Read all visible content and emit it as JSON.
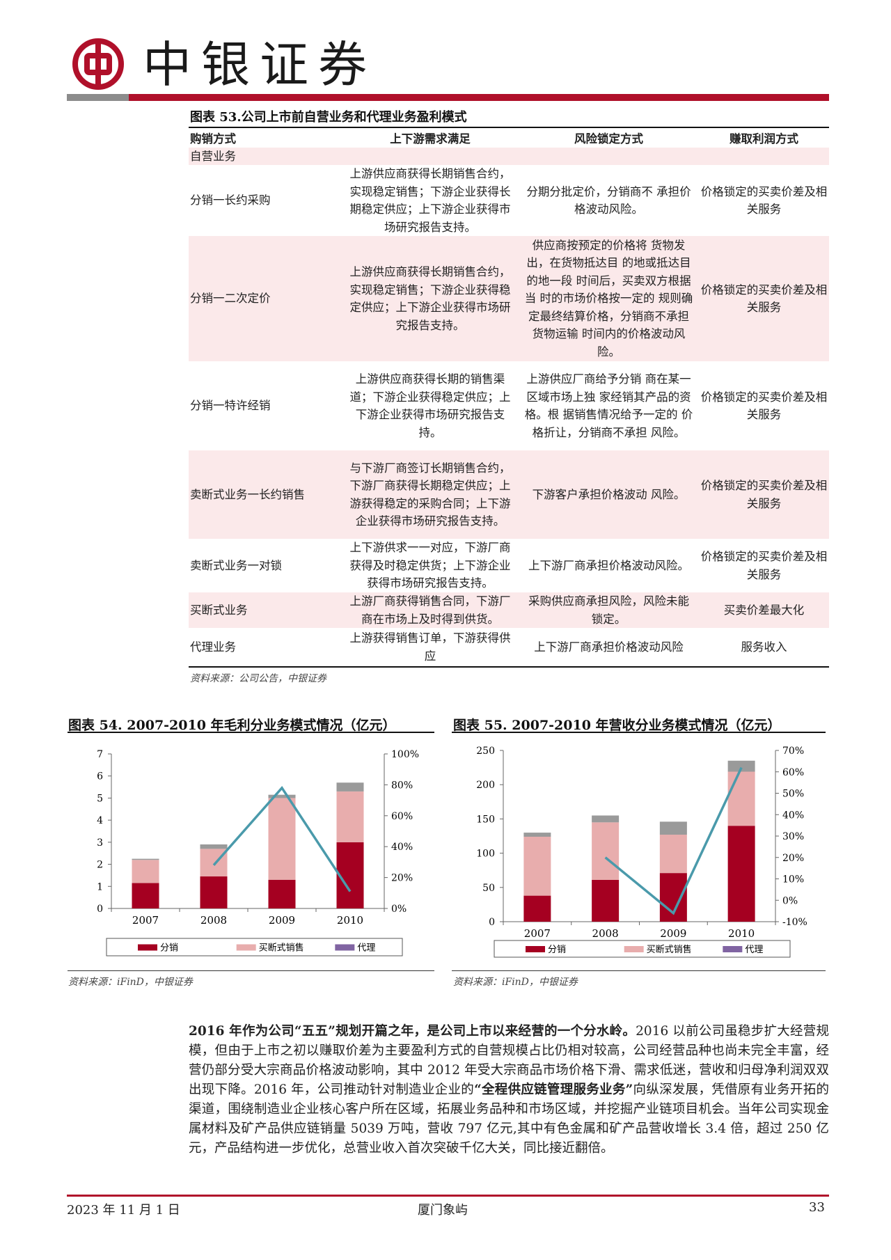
{
  "header": {
    "brand": "中银证券",
    "brand_color": "#b0102a"
  },
  "table53": {
    "title": "图表 53.公司上市前自营业务和代理业务盈利模式",
    "headers": [
      "购销方式",
      "上下游需求满足",
      "风险锁定方式",
      "赚取利润方式"
    ],
    "rows": [
      {
        "pink": true,
        "cells": [
          "自营业务",
          "",
          "",
          ""
        ]
      },
      {
        "pink": false,
        "cells": [
          "分销一长约采购",
          "上游供应商获得长期销售合约，实现稳定销售；下游企业获得长期稳定供应；上下游企业获得市场研究报告支持。",
          "分期分批定价，分销商不 承担价格波动风险。",
          "价格锁定的买卖价差及相关服务"
        ]
      },
      {
        "pink": true,
        "cells": [
          "分销一二次定价",
          "上游供应商获得长期销售合约，实现稳定销售；下游企业获得稳定供应；上下游企业获得市场研究报告支持。",
          "供应商按预定的价格将 货物发出，在货物抵达目 的地或抵达目的地一段 时间后，买卖双方根据当 时的市场价格按一定的 规则确定最终结算价格，分销商不承担货物运输 时间内的价格波动风险。",
          "价格锁定的买卖价差及相关服务"
        ]
      },
      {
        "pink": false,
        "cells": [
          "分销一特许经销",
          "上游供应商获得长期的销售渠道；下游企业获得稳定供应；上下游企业获得市场研究报告支持。",
          "上游供应厂商给予分销 商在某一区域市场上独 家经销其产品的资格。根 据销售情况给予一定的 价格折让，分销商不承担 风险。",
          "价格锁定的买卖价差及相关服务"
        ]
      },
      {
        "pink": true,
        "cells": [
          "卖断式业务一长约销售",
          "与下游厂商签订长期销售合约，下游厂商获得长期稳定供应；上游获得稳定的采购合同；上下游企业获得市场研究报告支持。",
          "下游客户承担价格波动 风险。",
          "价格锁定的买卖价差及相关服务"
        ]
      },
      {
        "pink": false,
        "cells": [
          "卖断式业务一对锁",
          "上下游供求一一对应，下游厂商获得及时稳定供货；上下游企业获得市场研究报告支持。",
          "上下游厂商承担价格波动风险。",
          "价格锁定的买卖价差及相关服务"
        ]
      },
      {
        "pink": true,
        "cells": [
          "买断式业务",
          "上游厂商获得销售合同，下游厂商在市场上及时得到供货。",
          "采购供应商承担风险，风险未能锁定。",
          "买卖价差最大化"
        ]
      },
      {
        "pink": false,
        "cells": [
          "代理业务",
          "上游获得销售订单，下游获得供应",
          "上下游厂商承担价格波动风险",
          "服务收入"
        ]
      }
    ],
    "source": "资料来源：公司公告，中银证券"
  },
  "chart_data": [
    {
      "type": "bar",
      "stacked": true,
      "title": "图表 54. 2007-2010 年毛利分业务模式情况（亿元）",
      "categories": [
        "2007",
        "2008",
        "2009",
        "2010"
      ],
      "series": [
        {
          "name": "分销",
          "values": [
            1.15,
            1.45,
            1.3,
            3.0
          ],
          "color": "#a50021"
        },
        {
          "name": "买断式销售",
          "values": [
            1.05,
            1.25,
            3.7,
            2.3
          ],
          "color": "#e8adad"
        },
        {
          "name": "代理",
          "values": [
            0.05,
            0.2,
            0.15,
            0.4
          ],
          "color": "#9a9a9a",
          "legend_color": "#8064a2"
        }
      ],
      "line": {
        "values": [
          null,
          0.28,
          0.78,
          0.11
        ],
        "color": "#4a9aab",
        "axis": "right"
      },
      "ylim": [
        0,
        7
      ],
      "yticks": [
        "0",
        "1",
        "2",
        "3",
        "4",
        "5",
        "6",
        "7"
      ],
      "y2lim": [
        0,
        1
      ],
      "y2ticks": [
        "0%",
        "20%",
        "40%",
        "60%",
        "80%",
        "100%"
      ],
      "legend": "bottom",
      "source": "资料来源：iFinD，中银证券"
    },
    {
      "type": "bar",
      "stacked": true,
      "title": "图表 55. 2007-2010 年营收分业务模式情况（亿元）",
      "categories": [
        "2007",
        "2008",
        "2009",
        "2010"
      ],
      "series": [
        {
          "name": "分销",
          "values": [
            38,
            61,
            71,
            140
          ],
          "color": "#a50021"
        },
        {
          "name": "买断式销售",
          "values": [
            86,
            84,
            56,
            79
          ],
          "color": "#e8adad"
        },
        {
          "name": "代理",
          "values": [
            6,
            10,
            19,
            16
          ],
          "color": "#9a9a9a",
          "legend_color": "#8064a2"
        }
      ],
      "line": {
        "values": [
          null,
          0.2,
          -0.06,
          0.62
        ],
        "color": "#4a9aab",
        "axis": "right"
      },
      "ylim": [
        0,
        250
      ],
      "yticks": [
        "0",
        "50",
        "100",
        "150",
        "200",
        "250"
      ],
      "y2lim": [
        -0.1,
        0.7
      ],
      "y2ticks": [
        "-10%",
        "0%",
        "10%",
        "20%",
        "30%",
        "40%",
        "50%",
        "60%",
        "70%"
      ],
      "legend": "bottom",
      "source": "资料来源：iFinD，中银证券"
    }
  ],
  "paragraph": [
    {
      "text": "2016 年作为公司“五五”规划开篇之年，是公司上市以来经营的一个分水岭。",
      "bold": true
    },
    {
      "text": "2016 以前公司虽稳步扩大经营规模，但由于上市之初以赚取价差为主要盈利方式的自营规模占比仍相对较高，公司经营品种也尚未完全丰富，经营仍部分受大宗商品价格波动影响，其中 2012 年受大宗商品市场价格下滑、需求低迷，营收和归母净利润双双出现下降。2016 年，公司推动针对制造业企业的",
      "bold": false
    },
    {
      "text": "“全程供应链管理服务业务”",
      "bold": true
    },
    {
      "text": "向纵深发展，凭借原有业务开拓的渠道，围绕制造业企业核心客户所在区域，拓展业务品种和市场区域，并挖掘产业链项目机会。当年公司实现金属材料及矿产品供应链销量 5039 万吨，营收 797 亿元,其中有色金属和矿产品营收增长 3.4 倍，超过 250 亿元，产品结构进一步优化，总营业收入首次突破千亿大关，同比接近翻倍。",
      "bold": false
    }
  ],
  "footer": {
    "date": "2023 年 11 月 1 日",
    "company": "厦门象屿",
    "page": "33"
  }
}
